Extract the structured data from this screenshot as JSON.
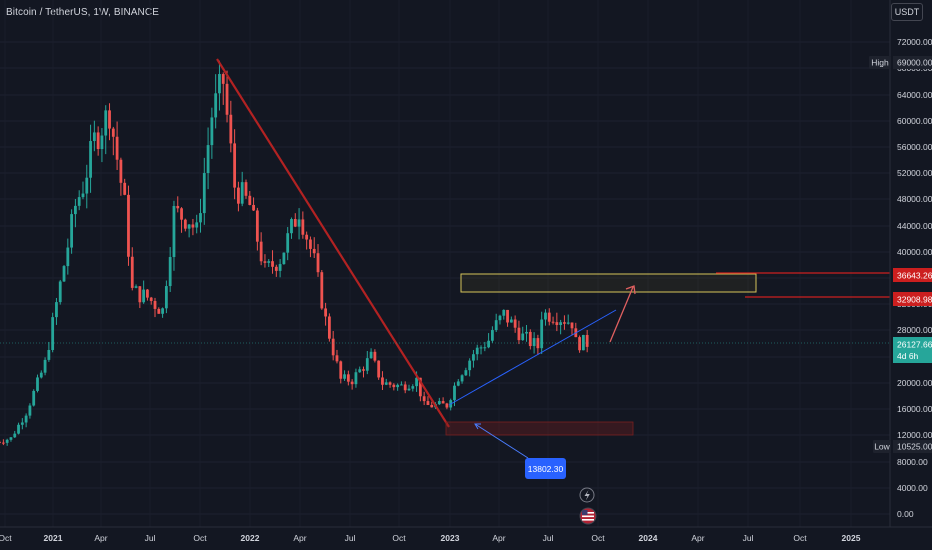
{
  "header": {
    "symbol_title": "Bitcoin / TetherUS, 1W, BINANCE",
    "currency": "USDT"
  },
  "price_axis": {
    "ticks": [
      "72000.00",
      "68000.00",
      "64000.00",
      "60000.00",
      "56000.00",
      "52000.00",
      "48000.00",
      "44000.00",
      "40000.00",
      "36000.00",
      "32000.00",
      "28000.00",
      "24000.00",
      "20000.00",
      "16000.00",
      "12000.00",
      "8000.00",
      "4000.00",
      "0.00"
    ],
    "labels": {
      "high_title": "High",
      "high_value": "69000.00",
      "level1": "36643.26",
      "level2": "32908.98",
      "last_price": "26127.66",
      "countdown": "4d 6h",
      "low_title": "Low",
      "low_value": "10525.00"
    }
  },
  "time_axis": {
    "labels": [
      "Oct",
      "2021",
      "Apr",
      "Jul",
      "Oct",
      "2022",
      "Apr",
      "Jul",
      "Oct",
      "2023",
      "Apr",
      "Jul",
      "Oct",
      "2024",
      "Apr",
      "Jul",
      "Oct",
      "2025"
    ]
  },
  "annotations": {
    "callout_value": "13802.30"
  },
  "colors": {
    "background": "#131722",
    "up": "#26a69a",
    "down": "#ef5350",
    "trendline_red": "#b22222",
    "trendline_blue": "#2962ff",
    "resistance_line": "#cc1f1f",
    "last_price": "#26a69a",
    "callout": "#2962ff"
  },
  "chart_data": {
    "type": "candlestick",
    "symbol": "BTCUSDT",
    "interval": "1W",
    "y_scale": "log",
    "ylim": [
      0,
      74000
    ],
    "close_points": [
      [
        "2020-09-14",
        11000
      ],
      [
        "2020-10-12",
        11500
      ],
      [
        "2020-11-09",
        15500
      ],
      [
        "2020-12-14",
        23000
      ],
      [
        "2021-01-11",
        35000
      ],
      [
        "2021-02-08",
        47000
      ],
      [
        "2021-02-22",
        50000
      ],
      [
        "2021-03-15",
        57000
      ],
      [
        "2021-04-12",
        61500
      ],
      [
        "2021-05-10",
        47000
      ],
      [
        "2021-05-24",
        34000
      ],
      [
        "2021-06-21",
        33000
      ],
      [
        "2021-07-19",
        31000
      ],
      [
        "2021-08-09",
        46000
      ],
      [
        "2021-09-06",
        45000
      ],
      [
        "2021-09-20",
        43000
      ],
      [
        "2021-10-18",
        61000
      ],
      [
        "2021-11-08",
        66000
      ],
      [
        "2021-11-29",
        50000
      ],
      [
        "2021-12-27",
        47000
      ],
      [
        "2022-01-24",
        37000
      ],
      [
        "2022-02-21",
        39000
      ],
      [
        "2022-03-28",
        46500
      ],
      [
        "2022-04-25",
        38500
      ],
      [
        "2022-05-16",
        29500
      ],
      [
        "2022-06-13",
        20500
      ],
      [
        "2022-07-04",
        20500
      ],
      [
        "2022-08-08",
        24000
      ],
      [
        "2022-08-29",
        20000
      ],
      [
        "2022-10-03",
        19500
      ],
      [
        "2022-10-31",
        20500
      ],
      [
        "2022-11-14",
        16500
      ],
      [
        "2022-12-26",
        16600
      ],
      [
        "2023-01-16",
        21000
      ],
      [
        "2023-02-13",
        24500
      ],
      [
        "2023-03-13",
        26500
      ],
      [
        "2023-03-20",
        28000
      ],
      [
        "2023-04-10",
        30400
      ],
      [
        "2023-05-15",
        27000
      ],
      [
        "2023-06-12",
        25500
      ],
      [
        "2023-06-19",
        30500
      ],
      [
        "2023-07-10",
        30300
      ],
      [
        "2023-08-14",
        29200
      ],
      [
        "2023-08-21",
        26100
      ],
      [
        "2023-09-11",
        26127.66
      ]
    ],
    "high": 69000.0,
    "low": 10525.0,
    "last": 26127.66,
    "levels": [
      36643.26,
      32908.98
    ],
    "annotated_low": 13802.3
  }
}
